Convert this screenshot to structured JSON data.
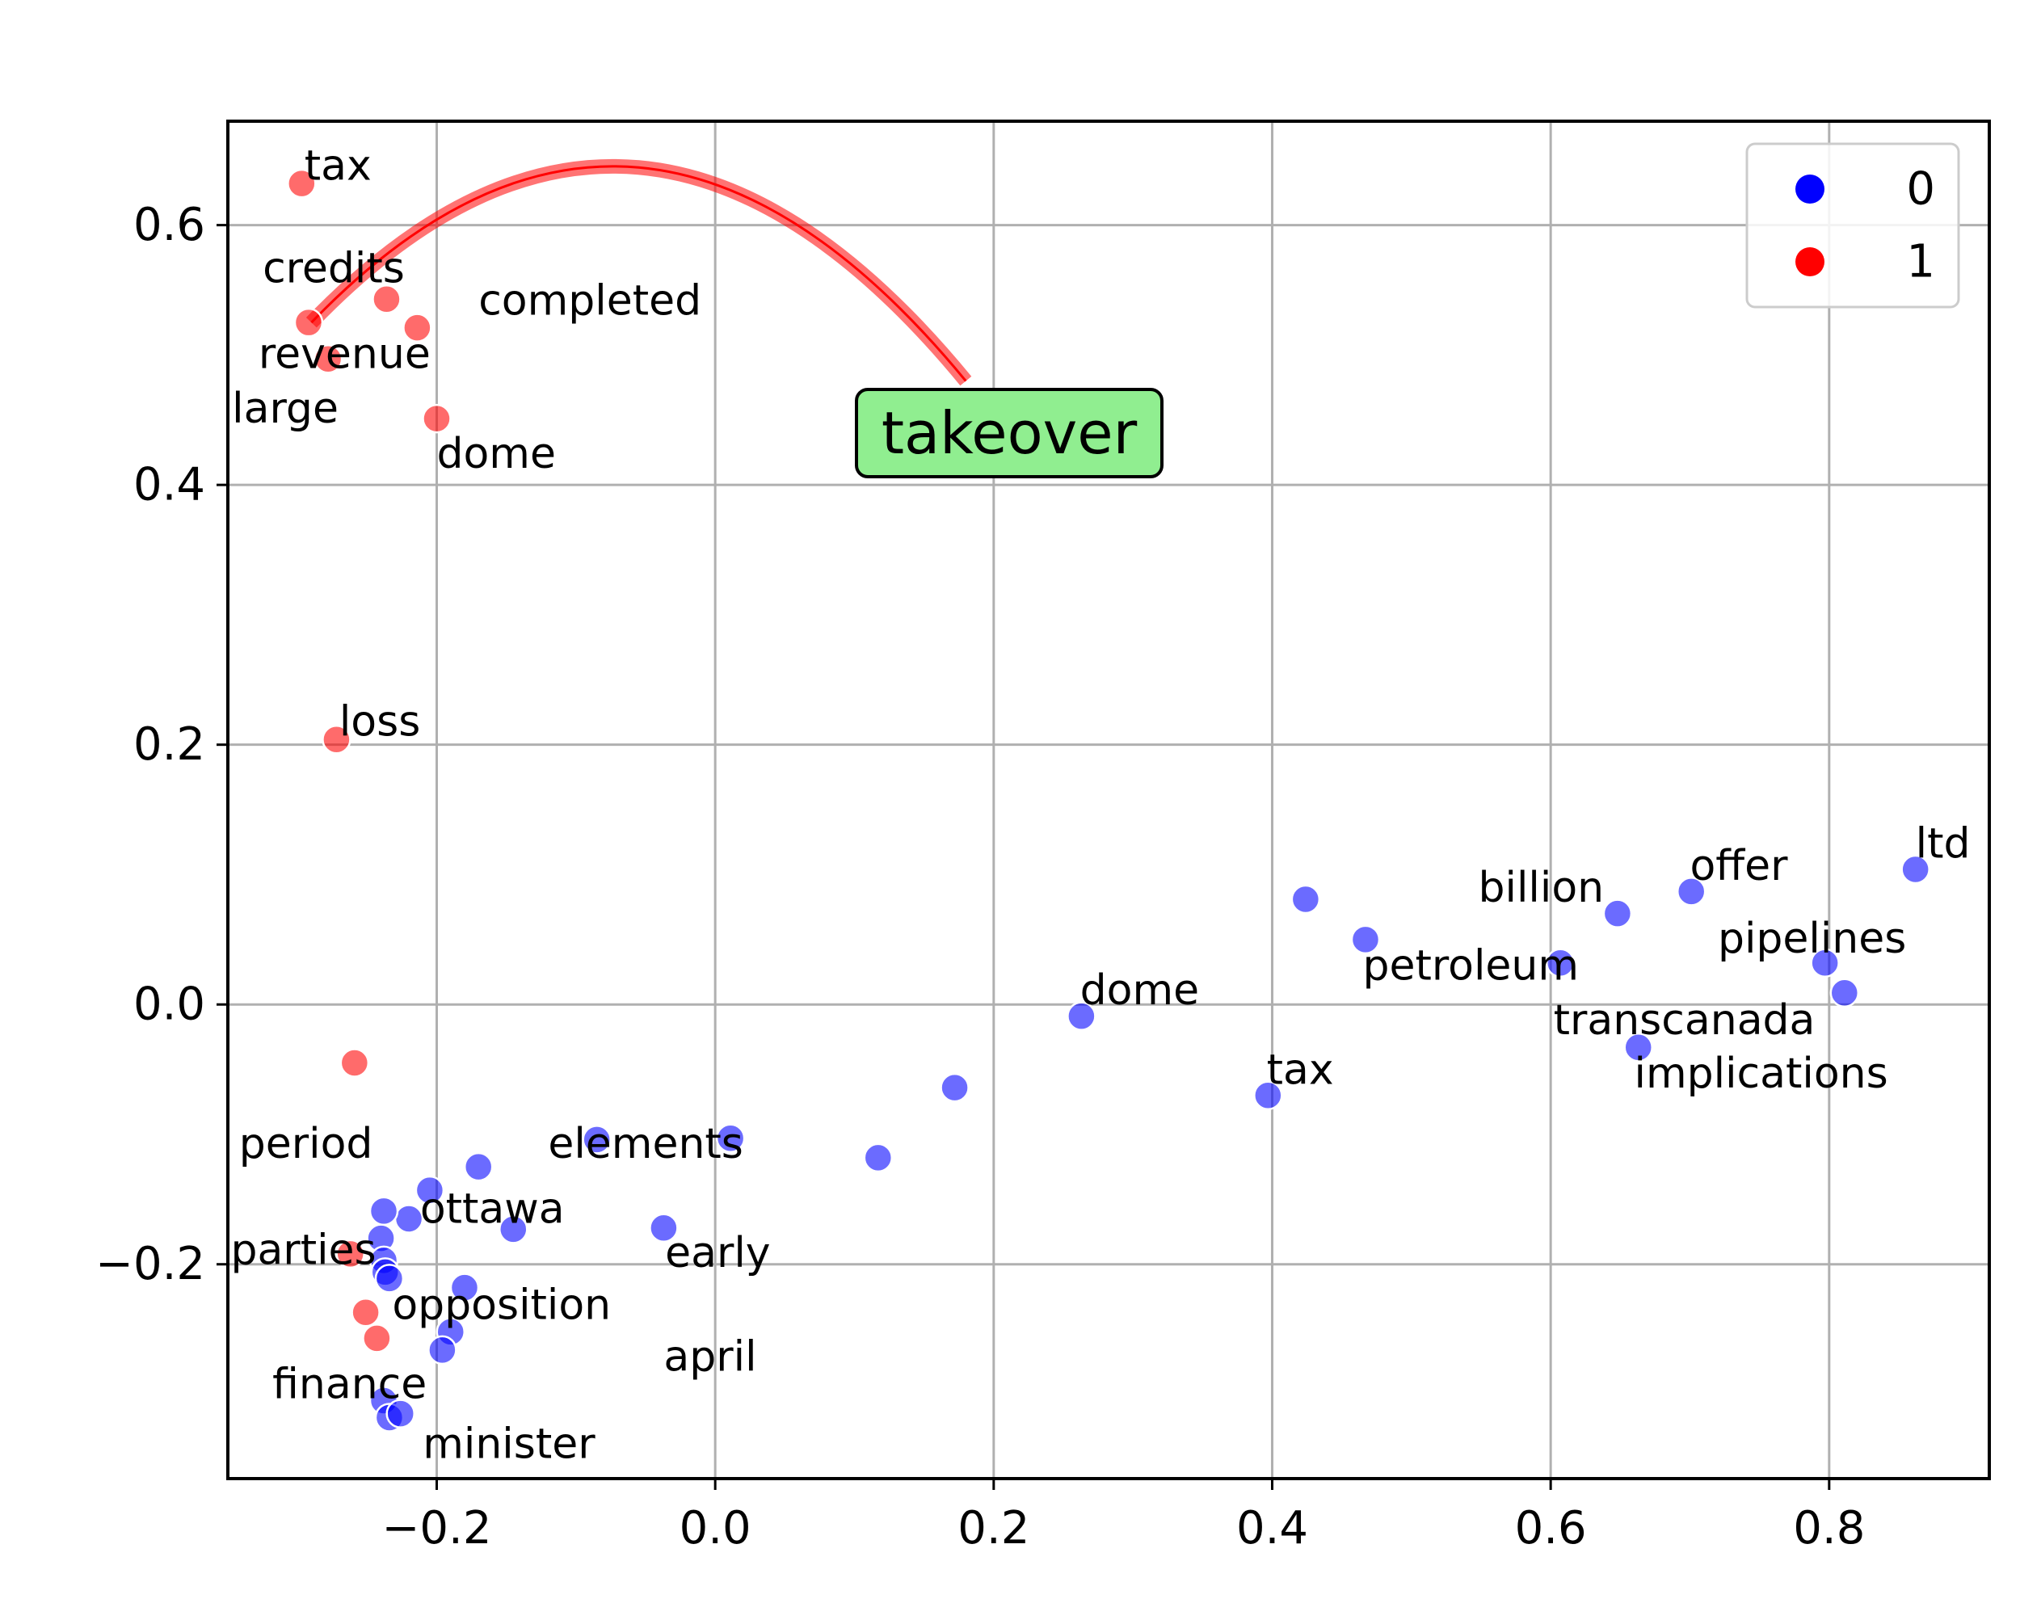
{
  "chart_data": {
    "type": "scatter",
    "title": "",
    "xlabel": "",
    "ylabel": "",
    "xlim": [
      -0.35,
      0.915
    ],
    "ylim": [
      -0.365,
      0.68
    ],
    "grid": true,
    "legend_position": "top-right",
    "x_ticks": [
      -0.2,
      0.0,
      0.2,
      0.4,
      0.6,
      0.8
    ],
    "y_ticks": [
      -0.2,
      0.0,
      0.2,
      0.4,
      0.6
    ],
    "x_tick_labels": [
      "−0.2",
      "0.0",
      "0.2",
      "0.4",
      "0.6",
      "0.8"
    ],
    "y_tick_labels": [
      "−0.2",
      "0.0",
      "0.2",
      "0.4",
      "0.6"
    ],
    "series": [
      {
        "name": "0",
        "color": "#0000ff",
        "points": [
          [
            0.862,
            0.104
          ],
          [
            0.701,
            0.087
          ],
          [
            0.648,
            0.07
          ],
          [
            0.607,
            0.032
          ],
          [
            0.797,
            0.032
          ],
          [
            0.811,
            0.009
          ],
          [
            0.663,
            -0.033
          ],
          [
            0.424,
            0.081
          ],
          [
            0.467,
            0.05
          ],
          [
            0.263,
            -0.009
          ],
          [
            0.397,
            -0.07
          ],
          [
            0.172,
            -0.064
          ],
          [
            0.117,
            -0.118
          ],
          [
            0.011,
            -0.103
          ],
          [
            -0.085,
            -0.104
          ],
          [
            -0.037,
            -0.172
          ],
          [
            -0.17,
            -0.125
          ],
          [
            -0.145,
            -0.173
          ],
          [
            -0.205,
            -0.143
          ],
          [
            -0.22,
            -0.165
          ],
          [
            -0.238,
            -0.159
          ],
          [
            -0.24,
            -0.18
          ],
          [
            -0.238,
            -0.197
          ],
          [
            -0.237,
            -0.206
          ],
          [
            -0.234,
            -0.211
          ],
          [
            -0.18,
            -0.218
          ],
          [
            -0.19,
            -0.252
          ],
          [
            -0.196,
            -0.266
          ],
          [
            -0.238,
            -0.305
          ],
          [
            -0.234,
            -0.318
          ],
          [
            -0.226,
            -0.315
          ]
        ]
      },
      {
        "name": "1",
        "color": "#ff0000",
        "points": [
          [
            -0.297,
            0.632
          ],
          [
            -0.236,
            0.543
          ],
          [
            -0.214,
            0.521
          ],
          [
            -0.292,
            0.525
          ],
          [
            -0.278,
            0.497
          ],
          [
            -0.2,
            0.451
          ],
          [
            -0.272,
            0.204
          ],
          [
            -0.259,
            -0.045
          ],
          [
            -0.262,
            -0.192
          ],
          [
            -0.251,
            -0.237
          ],
          [
            -0.243,
            -0.257
          ]
        ]
      }
    ],
    "annotations": [
      {
        "text": "tax",
        "x": -0.295,
        "y": 0.635
      },
      {
        "text": "credits",
        "x": -0.325,
        "y": 0.556
      },
      {
        "text": "completed",
        "x": -0.17,
        "y": 0.531
      },
      {
        "text": "revenue",
        "x": -0.328,
        "y": 0.49
      },
      {
        "text": "large",
        "x": -0.347,
        "y": 0.448
      },
      {
        "text": "dome",
        "x": -0.2,
        "y": 0.413
      },
      {
        "text": "loss",
        "x": -0.27,
        "y": 0.207
      },
      {
        "text": "period",
        "x": -0.342,
        "y": -0.118
      },
      {
        "text": "elements",
        "x": -0.12,
        "y": -0.118
      },
      {
        "text": "ottawa",
        "x": -0.212,
        "y": -0.168
      },
      {
        "text": "parties",
        "x": -0.348,
        "y": -0.2
      },
      {
        "text": "early",
        "x": -0.036,
        "y": -0.202
      },
      {
        "text": "opposition",
        "x": -0.232,
        "y": -0.242
      },
      {
        "text": "april",
        "x": -0.037,
        "y": -0.282
      },
      {
        "text": "finance",
        "x": -0.318,
        "y": -0.303
      },
      {
        "text": "minister",
        "x": -0.21,
        "y": -0.349
      },
      {
        "text": "dome",
        "x": 0.262,
        "y": 0.0
      },
      {
        "text": "tax",
        "x": 0.396,
        "y": -0.061
      },
      {
        "text": "petroleum",
        "x": 0.465,
        "y": 0.019
      },
      {
        "text": "billion",
        "x": 0.548,
        "y": 0.079
      },
      {
        "text": "offer",
        "x": 0.7,
        "y": 0.096
      },
      {
        "text": "ltd",
        "x": 0.862,
        "y": 0.113
      },
      {
        "text": "pipelines",
        "x": 0.72,
        "y": 0.04
      },
      {
        "text": "transcanada",
        "x": 0.602,
        "y": -0.023
      },
      {
        "text": "implications",
        "x": 0.66,
        "y": -0.064
      }
    ],
    "callout": {
      "text": "takeover",
      "box_color": "#90ee90",
      "arrow_color": "#ff0000",
      "from": [
        0.18,
        0.48
      ],
      "to": [
        -0.29,
        0.525
      ]
    }
  }
}
